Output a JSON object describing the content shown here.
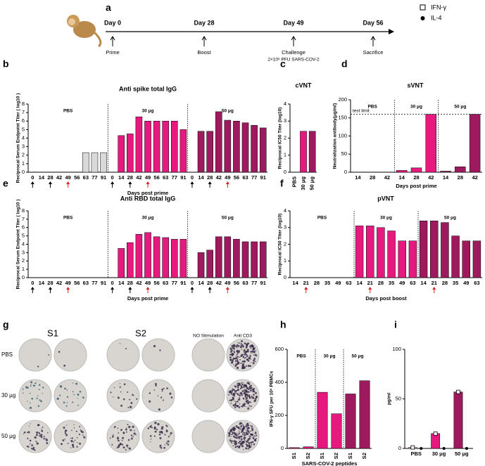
{
  "timeline": {
    "label": "a",
    "events": [
      {
        "day": "Day 0",
        "event": "Prime"
      },
      {
        "day": "Day 28",
        "event": "Boost"
      },
      {
        "day": "Day 49",
        "event": "Challenge",
        "note": "2×10⁶ PFU SARS-COV-2"
      },
      {
        "day": "Day 56",
        "event": "Sacrifice"
      }
    ]
  },
  "chart_data": [
    {
      "type": "grouped_bar",
      "label": "b",
      "title": "Anti spike total IgG",
      "ylabel": "Reciprocal Serum Endpoint Titer ( log10 )",
      "xlabel": "Days post prime",
      "ylim": [
        0,
        8
      ],
      "yticks": [
        0,
        1,
        2,
        3,
        4,
        5,
        6,
        7,
        8
      ],
      "groups": [
        {
          "name": "PBS",
          "color": "#d9d9d9",
          "categories": [
            "0",
            "14",
            "28",
            "42",
            "49",
            "56",
            "63",
            "77",
            "91"
          ],
          "values": [
            0,
            0,
            0,
            0,
            0,
            0,
            2.3,
            2.3,
            2.3
          ]
        },
        {
          "name": "30 μg",
          "color": "#e6197f",
          "categories": [
            "0",
            "14",
            "28",
            "42",
            "49",
            "56",
            "63",
            "77",
            "91"
          ],
          "values": [
            0,
            4.3,
            4.5,
            6.5,
            6.0,
            6.0,
            6.0,
            6.0,
            5.0
          ]
        },
        {
          "name": "50 μg",
          "color": "#9e1a5e",
          "categories": [
            "0",
            "14",
            "28",
            "42",
            "49",
            "56",
            "63",
            "77",
            "91"
          ],
          "values": [
            0,
            4.8,
            4.8,
            7.1,
            6.1,
            6.0,
            5.8,
            5.5,
            5.2
          ]
        }
      ]
    },
    {
      "type": "bar",
      "label": "c",
      "title": "cVNT",
      "ylabel": "Reciprocal IC50 Titer (log10)",
      "categories": [
        "PBS",
        "30 μg",
        "50 μg"
      ],
      "values": [
        0,
        2.4,
        2.4
      ],
      "colors": [
        "#e6197f",
        "#e6197f",
        "#9e1a5e"
      ],
      "ylim": [
        0,
        4
      ],
      "yticks": [
        0,
        1,
        2,
        3,
        4
      ]
    },
    {
      "type": "grouped_bar",
      "label": "d",
      "title": "sVNT",
      "ylabel": "Neutralization antibody(μg/ml)",
      "xlabel": "Days post prime",
      "ylim": [
        0,
        200
      ],
      "yticks": [
        0,
        50,
        100,
        150,
        200
      ],
      "annotations": [
        {
          "text": "test limit",
          "y": 160
        }
      ],
      "groups": [
        {
          "name": "PBS",
          "color": "#e6197f",
          "categories": [
            "14",
            "28",
            "42"
          ],
          "values": [
            0,
            0,
            0
          ]
        },
        {
          "name": "30 μg",
          "color": "#e6197f",
          "categories": [
            "14",
            "28",
            "42"
          ],
          "values": [
            5,
            12,
            160
          ]
        },
        {
          "name": "50 μg",
          "color": "#9e1a5e",
          "categories": [
            "14",
            "28",
            "42"
          ],
          "values": [
            3,
            15,
            160
          ]
        }
      ]
    },
    {
      "type": "grouped_bar",
      "label": "e",
      "title": "Anti RBD total IgG",
      "ylabel": "Reciprocal Serum Endpoint Titer ( log10 )",
      "xlabel": "Days post prime",
      "ylim": [
        0,
        8
      ],
      "yticks": [
        0,
        1,
        2,
        3,
        4,
        5,
        6,
        7,
        8
      ],
      "groups": [
        {
          "name": "PBS",
          "color": "#d9d9d9",
          "categories": [
            "0",
            "14",
            "28",
            "42",
            "49",
            "56",
            "63",
            "77",
            "91"
          ],
          "values": [
            0,
            0,
            0,
            0,
            0,
            0,
            0,
            0,
            0
          ]
        },
        {
          "name": "30 μg",
          "color": "#e6197f",
          "categories": [
            "0",
            "14",
            "28",
            "42",
            "49",
            "56",
            "63",
            "77",
            "91"
          ],
          "values": [
            0,
            3.5,
            4.2,
            5.2,
            5.4,
            4.9,
            4.8,
            4.6,
            4.6
          ]
        },
        {
          "name": "50 μg",
          "color": "#9e1a5e",
          "categories": [
            "0",
            "14",
            "28",
            "42",
            "49",
            "56",
            "63",
            "77",
            "91"
          ],
          "values": [
            0,
            3.0,
            3.3,
            4.9,
            4.9,
            4.6,
            4.3,
            4.3,
            4.3
          ]
        }
      ]
    },
    {
      "type": "grouped_bar",
      "label": "f",
      "title": "pVNT",
      "ylabel": "Reciprocal IC50 Titer (log10)",
      "xlabel": "Days post boost",
      "ylim": [
        0,
        4
      ],
      "yticks": [
        0,
        1,
        2,
        3,
        4
      ],
      "groups": [
        {
          "name": "PBS",
          "color": "#e6197f",
          "categories": [
            "14",
            "21",
            "28",
            "35",
            "49",
            "63"
          ],
          "values": [
            0,
            0,
            0,
            0,
            0,
            0
          ]
        },
        {
          "name": "30 μg",
          "color": "#e6197f",
          "categories": [
            "14",
            "21",
            "28",
            "35",
            "49",
            "63"
          ],
          "values": [
            3.1,
            3.1,
            3.0,
            2.8,
            2.2,
            2.2
          ]
        },
        {
          "name": "50 μg",
          "color": "#9e1a5e",
          "categories": [
            "14",
            "21",
            "28",
            "35",
            "49",
            "63"
          ],
          "values": [
            3.4,
            3.4,
            3.3,
            2.5,
            2.2,
            2.2
          ]
        }
      ]
    },
    {
      "type": "grouped_bar",
      "label": "h",
      "ylabel": "IFN-γ SFU per 10⁶ PBMCs",
      "xlabel": "SARS-COV-2 peptides",
      "ylim": [
        0,
        600
      ],
      "yticks": [
        0,
        200,
        400,
        600
      ],
      "groups": [
        {
          "name": "PBS",
          "color": "#e6197f",
          "categories": [
            "S1",
            "S2"
          ],
          "values": [
            5,
            10
          ]
        },
        {
          "name": "30 μg",
          "color": "#e6197f",
          "categories": [
            "S1",
            "S2"
          ],
          "values": [
            340,
            210
          ]
        },
        {
          "name": "50 μg",
          "color": "#9e1a5e",
          "categories": [
            "S1",
            "S2"
          ],
          "values": [
            330,
            410
          ]
        }
      ]
    },
    {
      "type": "bar_dots",
      "label": "i",
      "ylabel": "pg/ml",
      "categories": [
        "PBS",
        "30 μg",
        "50 μg"
      ],
      "colors": [
        "#f2a6c8",
        "#e6197f",
        "#9e1a5e"
      ],
      "ylim": [
        0,
        100
      ],
      "yticks": [
        0,
        50,
        100
      ],
      "series": [
        {
          "name": "IFN-γ",
          "values": [
            1,
            15,
            57
          ]
        },
        {
          "name": "IL-4",
          "values": [
            0,
            0,
            0
          ]
        }
      ]
    }
  ],
  "elispot": {
    "label": "g",
    "columns": [
      "S1",
      "S2",
      "NO Stimulation",
      "Anti CD3"
    ],
    "rows": [
      "PBS",
      "30 μg",
      "50 μg"
    ]
  }
}
